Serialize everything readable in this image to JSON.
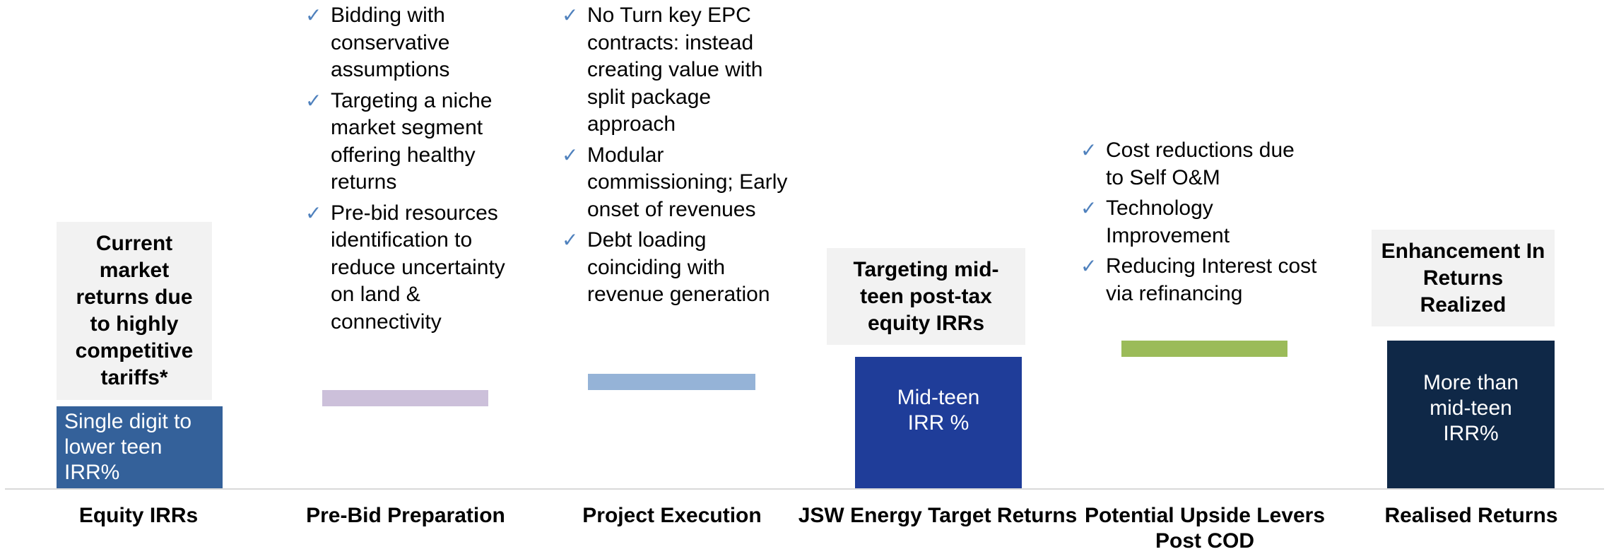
{
  "columns": [
    {
      "label": "Equity IRRs",
      "callout": "Current market returns due to highly competitive tariffs*",
      "bar_text": "Single digit to lower teen IRR%"
    },
    {
      "label": "Pre-Bid Preparation",
      "bullets": [
        "Bidding with conservative assumptions",
        "Targeting a niche market segment offering healthy returns",
        "Pre-bid resources identification to reduce uncertainty on land & connectivity"
      ]
    },
    {
      "label": "Project Execution",
      "bullets": [
        "No Turn key EPC contracts: instead creating value with split package approach",
        "Modular commissioning; Early onset of revenues",
        "Debt loading coinciding with revenue generation"
      ]
    },
    {
      "label": "JSW Energy Target Returns",
      "callout": "Targeting mid-teen post-tax equity IRRs",
      "bar_text": "Mid-teen IRR %"
    },
    {
      "label": "Potential Upside Levers Post COD",
      "bullets": [
        "Cost reductions due to Self O&M",
        "Technology Improvement",
        "Reducing Interest cost via refinancing"
      ]
    },
    {
      "label": "Realised Returns",
      "callout": "Enhancement In Returns Realized",
      "bar_text": "More than mid-teen IRR%"
    }
  ]
}
